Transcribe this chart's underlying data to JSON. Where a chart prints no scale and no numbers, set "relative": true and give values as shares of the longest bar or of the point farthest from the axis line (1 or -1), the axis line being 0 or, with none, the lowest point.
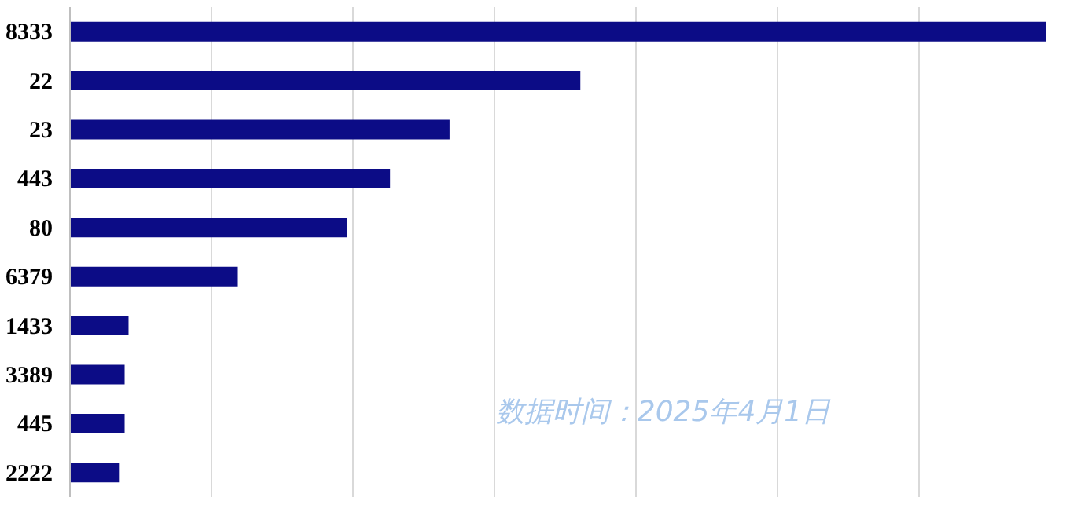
{
  "chart_data": {
    "type": "bar",
    "orientation": "horizontal",
    "relative": true,
    "grid": "x",
    "categories": [
      "8333",
      "22",
      "23",
      "443",
      "80",
      "6379",
      "1433",
      "3389",
      "445",
      "2222"
    ],
    "values": [
      1,
      0.523,
      0.389,
      0.328,
      0.284,
      0.172,
      0.06,
      0.056,
      0.056,
      0.051
    ],
    "color": "#0c0c86",
    "annotations": [
      "数据时间：2025年4月1日"
    ]
  }
}
